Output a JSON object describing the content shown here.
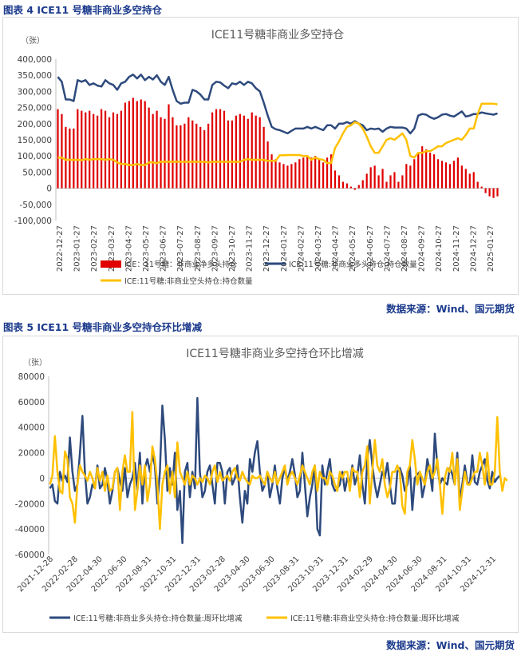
{
  "figure1": {
    "caption": "图表 4  ICE11 号糖非商业多空持仓",
    "source": "数据来源：Wind、国元期货"
  },
  "figure2": {
    "caption": "图表 5  ICE11 号糖非商业多空持仓环比增减",
    "source": "数据来源：Wind、国元期货"
  },
  "chart_data": [
    {
      "type": "bar",
      "title": "ICE11号糖非商业多空持仓",
      "ylabel": "（张）",
      "ylim": [
        -100000,
        400000
      ],
      "yticks": [
        "-100,000",
        "-50,000",
        "0",
        "50,000",
        "100,000",
        "150,000",
        "200,000",
        "250,000",
        "300,000",
        "350,000",
        "400,000"
      ],
      "xticks": [
        "2022-12-27",
        "2023-01-27",
        "2023-02-27",
        "2023-03-27",
        "2023-04-27",
        "2023-05-27",
        "2023-06-27",
        "2023-07-27",
        "2023-08-27",
        "2023-09-27",
        "2023-10-27",
        "2023-11-27",
        "2023-12-27",
        "2024-01-27",
        "2024-02-27",
        "2024-03-27",
        "2024-04-27",
        "2024-05-27",
        "2024-06-27",
        "2024-07-27",
        "2024-08-27",
        "2024-09-27",
        "2024-10-27",
        "2024-11-27",
        "2024-12-27",
        "2025-01-27"
      ],
      "grid": false,
      "legend_position": "bottom",
      "series": [
        {
          "name": "ICE：11号糖：非商业净多头持仓",
          "kind": "bar",
          "color": "#e00000",
          "values": [
            245000,
            230000,
            190000,
            185000,
            185000,
            245000,
            240000,
            235000,
            240000,
            230000,
            225000,
            245000,
            240000,
            220000,
            235000,
            230000,
            240000,
            265000,
            270000,
            280000,
            270000,
            275000,
            270000,
            250000,
            230000,
            240000,
            220000,
            215000,
            260000,
            220000,
            195000,
            195000,
            200000,
            220000,
            210000,
            200000,
            190000,
            180000,
            200000,
            235000,
            245000,
            245000,
            240000,
            210000,
            210000,
            225000,
            230000,
            225000,
            215000,
            235000,
            225000,
            220000,
            190000,
            145000,
            105000,
            90000,
            80000,
            75000,
            70000,
            75000,
            80000,
            90000,
            95000,
            100000,
            95000,
            100000,
            90000,
            80000,
            95000,
            105000,
            55000,
            40000,
            20000,
            15000,
            5000,
            -5000,
            10000,
            25000,
            45000,
            65000,
            70000,
            40000,
            60000,
            20000,
            40000,
            50000,
            20000,
            40000,
            75000,
            70000,
            90000,
            110000,
            130000,
            120000,
            110000,
            105000,
            90000,
            85000,
            80000,
            75000,
            85000,
            95000,
            70000,
            60000,
            45000,
            50000,
            20000,
            5000,
            -15000,
            -25000,
            -30000,
            -25000
          ]
        },
        {
          "name": "ICE:11号糖:非商业多头持仓:持仓数量",
          "kind": "line",
          "color": "#2e4a7d",
          "values": [
            345000,
            330000,
            275000,
            275000,
            270000,
            335000,
            330000,
            335000,
            320000,
            325000,
            318000,
            315000,
            335000,
            325000,
            320000,
            305000,
            325000,
            330000,
            345000,
            352000,
            340000,
            352000,
            335000,
            345000,
            337000,
            350000,
            330000,
            320000,
            345000,
            305000,
            270000,
            262000,
            265000,
            265000,
            305000,
            300000,
            290000,
            275000,
            275000,
            320000,
            330000,
            328000,
            318000,
            310000,
            325000,
            322000,
            330000,
            320000,
            330000,
            325000,
            310000,
            300000,
            265000,
            225000,
            190000,
            183000,
            180000,
            175000,
            170000,
            178000,
            185000,
            185000,
            185000,
            190000,
            185000,
            190000,
            185000,
            180000,
            195000,
            195000,
            185000,
            200000,
            200000,
            205000,
            200000,
            208000,
            200000,
            195000,
            180000,
            185000,
            183000,
            185000,
            175000,
            185000,
            190000,
            188000,
            188000,
            188000,
            185000,
            170000,
            185000,
            225000,
            230000,
            228000,
            220000,
            215000,
            220000,
            228000,
            230000,
            225000,
            222000,
            230000,
            238000,
            222000,
            225000,
            230000,
            230000,
            235000,
            232000,
            230000,
            228000,
            232000
          ]
        },
        {
          "name": "ICE:11号糖:非商业空头持仓:持仓数量",
          "kind": "line",
          "color": "#ffc000",
          "values": [
            95000,
            95000,
            88000,
            88000,
            88000,
            88000,
            87000,
            90000,
            88000,
            90000,
            90000,
            90000,
            88000,
            90000,
            88000,
            80000,
            75000,
            75000,
            72000,
            72000,
            75000,
            72000,
            72000,
            80000,
            80000,
            78000,
            82000,
            82000,
            82000,
            82000,
            82000,
            82000,
            82000,
            82000,
            82000,
            82000,
            82000,
            82000,
            80000,
            82000,
            82000,
            82000,
            82000,
            82000,
            82000,
            82000,
            82000,
            88000,
            90000,
            88000,
            88000,
            88000,
            88000,
            85000,
            85000,
            85000,
            102000,
            102000,
            103000,
            103000,
            103000,
            103000,
            100000,
            100000,
            88000,
            95000,
            90000,
            88000,
            78000,
            78000,
            125000,
            145000,
            170000,
            190000,
            195000,
            205000,
            200000,
            185000,
            160000,
            130000,
            110000,
            110000,
            130000,
            150000,
            155000,
            150000,
            160000,
            170000,
            150000,
            100000,
            95000,
            110000,
            110000,
            115000,
            115000,
            122000,
            130000,
            130000,
            140000,
            145000,
            150000,
            155000,
            150000,
            165000,
            185000,
            185000,
            230000,
            262000,
            262000,
            262000,
            262000,
            260000
          ]
        }
      ]
    },
    {
      "type": "line",
      "title": "ICE11号糖非商业多空持仓环比增减",
      "ylabel": "（张）",
      "ylim": [
        -60000,
        80000
      ],
      "yticks": [
        "-60000",
        "-40000",
        "-20000",
        "0",
        "20000",
        "40000",
        "60000",
        "80000"
      ],
      "xticks": [
        "2021-12-28",
        "2022-02-28",
        "2022-04-30",
        "2022-06-30",
        "2022-08-31",
        "2022-10-31",
        "2022-12-31",
        "2023-02-28",
        "2023-04-30",
        "2023-06-30",
        "2023-08-31",
        "2023-10-31",
        "2023-12-31",
        "2024-02-29",
        "2024-04-30",
        "2024-06-30",
        "2024-08-31",
        "2024-10-31",
        "2024-12-31"
      ],
      "grid": false,
      "legend_position": "bottom",
      "series": [
        {
          "name": "ICE:11号糖:非商业多头持仓:持仓数量:周环比增减",
          "kind": "line",
          "color": "#2e4a7d",
          "values": [
            -8000,
            -5000,
            -18000,
            -20000,
            5000,
            -2000,
            2000,
            -3000,
            32000,
            5000,
            -10000,
            -5000,
            20000,
            49000,
            5000,
            -20000,
            -15000,
            -5000,
            -8000,
            10000,
            -8000,
            -5000,
            8000,
            -2000,
            -20000,
            -10000,
            5000,
            8000,
            -2000,
            -10000,
            8000,
            -15000,
            -5000,
            0,
            12000,
            -10000,
            20000,
            -20000,
            8000,
            15000,
            5000,
            18000,
            10000,
            -20000,
            5000,
            57000,
            30000,
            -10000,
            8000,
            -5000,
            20000,
            -25000,
            -10000,
            -51000,
            5000,
            12000,
            -15000,
            5000,
            -8000,
            63000,
            5000,
            -15000,
            -10000,
            5000,
            10000,
            -5000,
            -20000,
            12000,
            12000,
            5000,
            -20000,
            5000,
            8000,
            -5000,
            0,
            10000,
            -15000,
            -35000,
            -10000,
            -20000,
            15000,
            5000,
            20000,
            29000,
            5000,
            -10000,
            -5000,
            5000,
            -15000,
            -5000,
            10000,
            -8000,
            -20000,
            0,
            8000,
            -2000,
            5000,
            15000,
            3000,
            -15000,
            -10000,
            20000,
            -5000,
            -30000,
            -15000,
            -5000,
            10000,
            -40000,
            -45000,
            10000,
            -5000,
            5000,
            15000,
            -5000,
            -10000,
            -8000,
            -5000,
            5000,
            -10000,
            0,
            -5000,
            10000,
            -5000,
            2000,
            18000,
            -5000,
            -20000,
            15000,
            30000,
            10000,
            -5000,
            -15000,
            -5000,
            5000,
            0,
            12000,
            -5000,
            -20000,
            -20000,
            5000,
            8000,
            2000,
            -10000,
            -5000,
            10000,
            -25000,
            0,
            3000,
            5000,
            -15000,
            -5000,
            15000,
            5000,
            -10000,
            35000,
            10000,
            -5000,
            0,
            -3000,
            -5000,
            8000,
            3000,
            -5000,
            20000,
            -18000,
            -5000,
            10000,
            -3000,
            -5000,
            18000,
            -3000,
            -5000,
            5000,
            10000,
            15000,
            -2000,
            -8000,
            5000,
            -3000,
            0,
            2000
          ]
        },
        {
          "name": "ICE:11号糖:非商业空头持仓:持仓数量:周环比增减",
          "kind": "line",
          "color": "#ffc000",
          "values": [
            -5000,
            2000,
            33000,
            5000,
            -10000,
            -12000,
            21000,
            15000,
            -15000,
            -20000,
            -35000,
            -5000,
            10000,
            5000,
            2000,
            -2000,
            5000,
            0,
            -8000,
            8000,
            -2000,
            5000,
            -10000,
            2000,
            -10000,
            -8000,
            5000,
            8000,
            -25000,
            5000,
            18000,
            5000,
            5000,
            52000,
            -25000,
            -10000,
            10000,
            -5000,
            10000,
            -18000,
            -5000,
            25000,
            15000,
            -5000,
            -40000,
            -5000,
            5000,
            10000,
            -12000,
            5000,
            -15000,
            28000,
            5000,
            0,
            -5000,
            5000,
            -5000,
            2000,
            0,
            -5000,
            0,
            -3000,
            2000,
            0,
            -5000,
            5000,
            10000,
            -3000,
            5000,
            -2000,
            0,
            2000,
            -2000,
            5000,
            8000,
            0,
            -2000,
            5000,
            0,
            -3000,
            -5000,
            2000,
            0,
            0,
            2000,
            -2000,
            -5000,
            5000,
            0,
            -3000,
            5000,
            -5000,
            0,
            5000,
            10000,
            -5000,
            2000,
            5000,
            0,
            -5000,
            2000,
            10000,
            5000,
            0,
            -5000,
            5000,
            10000,
            -10000,
            5000,
            0,
            0,
            -5000,
            5000,
            2000,
            -5000,
            -10000,
            5000,
            0,
            5000,
            5000,
            -10000,
            8000,
            5000,
            5000,
            -15000,
            5000,
            10000,
            25000,
            -20000,
            5000,
            30000,
            10000,
            5000,
            15000,
            -5000,
            -15000,
            -8000,
            5000,
            5000,
            10000,
            5000,
            -22000,
            -28000,
            5000,
            10000,
            30000,
            15000,
            -5000,
            5000,
            0,
            -5000,
            5000,
            10000,
            0,
            5000,
            15000,
            -5000,
            -28000,
            0,
            8000,
            5000,
            20000,
            -5000,
            15000,
            -25000,
            -10000,
            5000,
            -5000,
            -5000,
            0,
            5000,
            5000,
            20000,
            10000,
            -5000,
            20000,
            -5000,
            -5000,
            5000,
            48000,
            5000,
            -10000,
            0,
            -2000
          ]
        }
      ]
    }
  ]
}
